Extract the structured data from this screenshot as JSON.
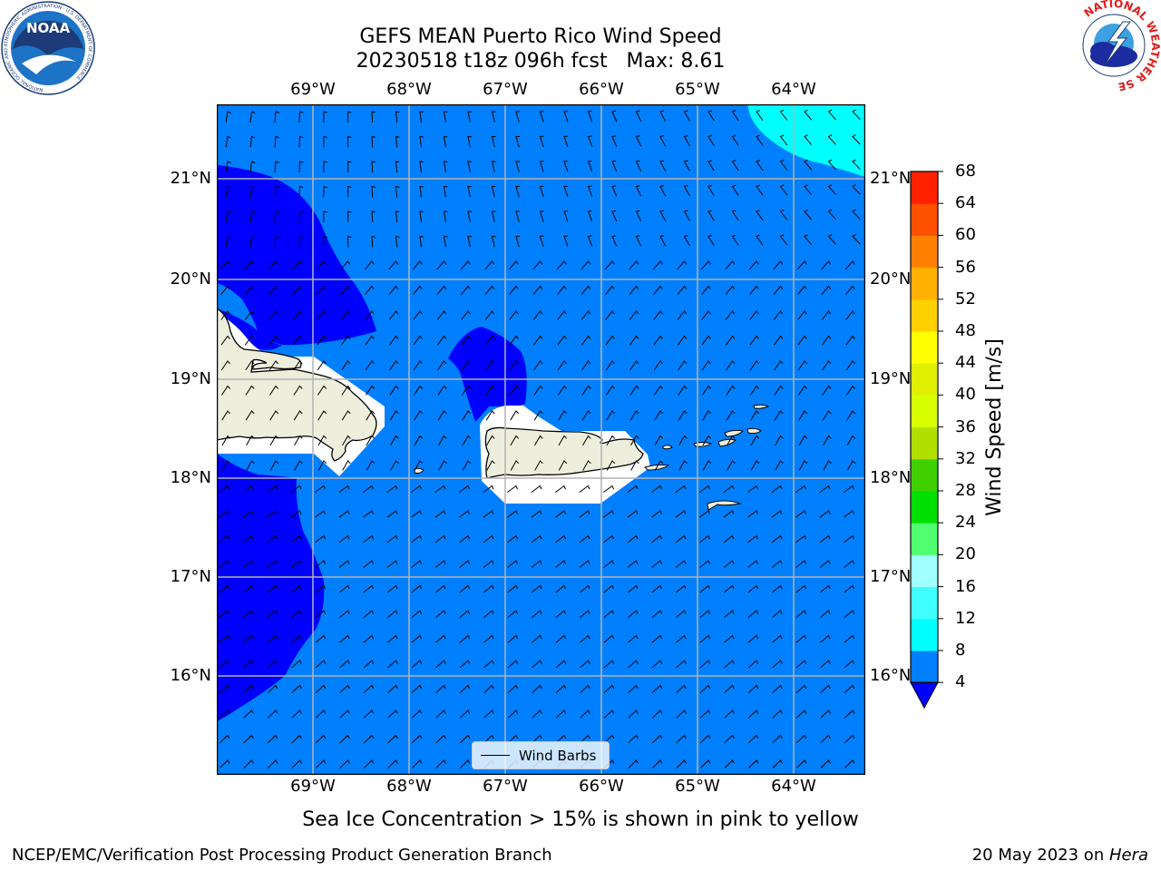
{
  "title": {
    "line1": "GEFS MEAN Puerto Rico Wind Speed",
    "line2": "20230518 t18z 096h fcst   Max: 8.61"
  },
  "lon_labels": [
    "69°W",
    "68°W",
    "67°W",
    "66°W",
    "65°W",
    "64°W"
  ],
  "lat_labels": [
    "21°N",
    "20°N",
    "19°N",
    "18°N",
    "17°N",
    "16°N"
  ],
  "colorbar": {
    "title": "Wind Speed [m/s]",
    "levels": [
      4,
      8,
      12,
      16,
      20,
      24,
      28,
      32,
      36,
      40,
      44,
      48,
      52,
      56,
      60,
      64,
      68
    ],
    "colors": [
      "#0080ff",
      "#00ffff",
      "#40ffff",
      "#a0ffff",
      "#50ff70",
      "#00e000",
      "#40d000",
      "#b0e000",
      "#d8ff00",
      "#e0f000",
      "#ffff00",
      "#ffd000",
      "#ffb000",
      "#ff8000",
      "#ff5000",
      "#ff2000"
    ],
    "under_color": "#0000ff",
    "labels": [
      "4",
      "8",
      "12",
      "16",
      "20",
      "24",
      "28",
      "32",
      "36",
      "40",
      "44",
      "48",
      "52",
      "56",
      "60",
      "64",
      "68"
    ]
  },
  "colors": {
    "ocean_base": "#0080ff",
    "slow_wind": "#0000ff",
    "fast_wind": "#00ffff",
    "land": "#eeeedd"
  },
  "legend": {
    "label": "Wind Barbs"
  },
  "subtitle": "Sea Ice Concentration > 15% is shown in pink to yellow",
  "footer": {
    "left": "NCEP/EMC/Verification Post Processing Product Generation Branch",
    "right_date": "20 May 2023 on ",
    "right_machine": "Hera"
  },
  "logos": {
    "noaa": {
      "text": "NOAA",
      "ring_text": "NATIONAL OCEANIC AND ATMOSPHERIC ADMINISTRATION · U.S. DEPARTMENT OF COMMERCE"
    },
    "nws": {
      "ring_text": "NATIONAL WEATHER SERVICE"
    }
  }
}
